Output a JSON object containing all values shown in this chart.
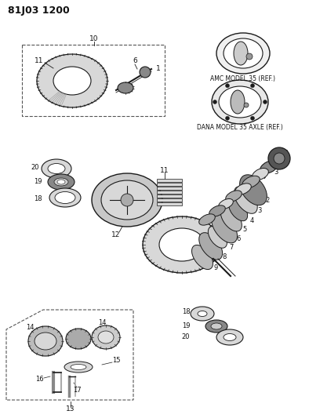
{
  "title": "81J03 1200",
  "bg_color": "#ffffff",
  "lc": "#1a1a1a",
  "amc_label": "AMC MODEL 35 (REF.)",
  "dana_label": "DANA MODEL 35 AXLE (REF.)",
  "fig_w": 3.94,
  "fig_h": 5.33,
  "dpi": 100
}
